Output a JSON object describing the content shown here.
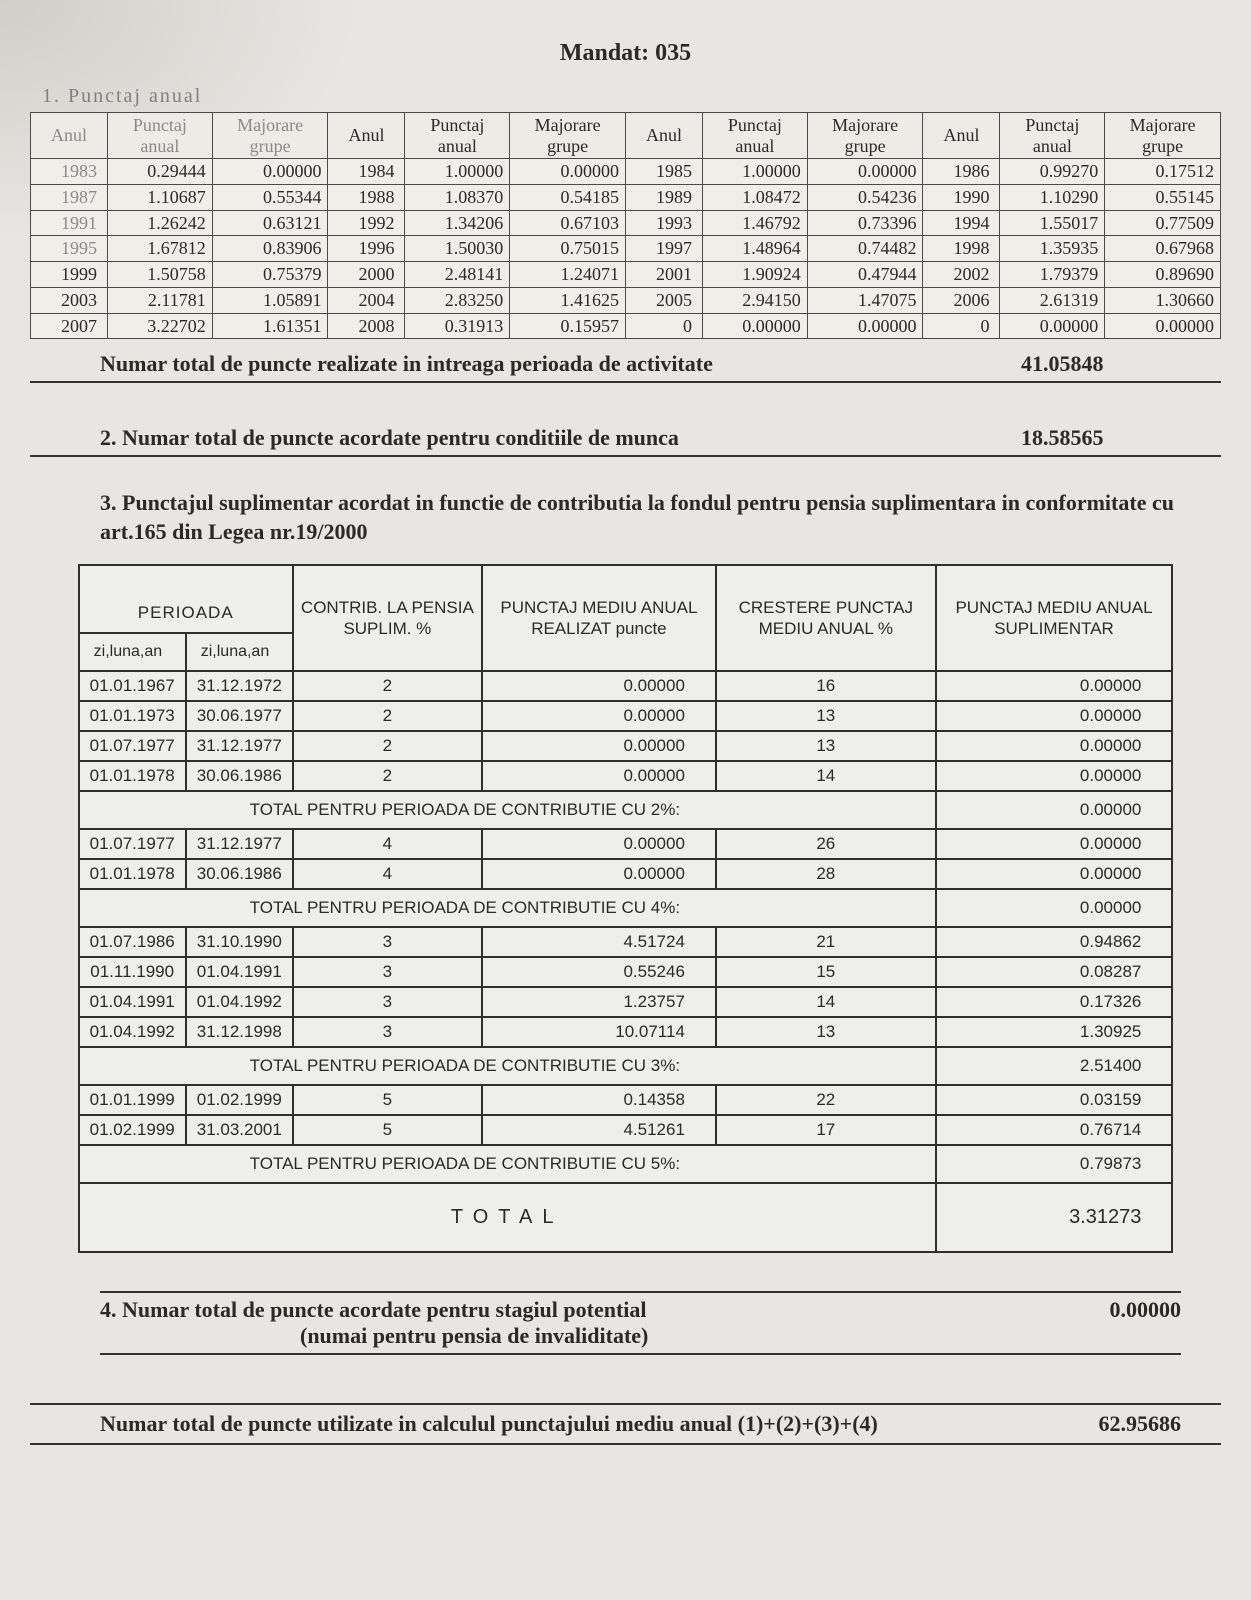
{
  "title": "Mandat: 035",
  "section1_label": "1. Punctaj anual",
  "yearly": {
    "headers": {
      "anul": "Anul",
      "punctaj": "Punctaj anual",
      "majorare": "Majorare grupe"
    },
    "rows": [
      [
        {
          "y": "1983",
          "p": "0.29444",
          "m": "0.00000"
        },
        {
          "y": "1984",
          "p": "1.00000",
          "m": "0.00000"
        },
        {
          "y": "1985",
          "p": "1.00000",
          "m": "0.00000"
        },
        {
          "y": "1986",
          "p": "0.99270",
          "m": "0.17512"
        }
      ],
      [
        {
          "y": "1987",
          "p": "1.10687",
          "m": "0.55344"
        },
        {
          "y": "1988",
          "p": "1.08370",
          "m": "0.54185"
        },
        {
          "y": "1989",
          "p": "1.08472",
          "m": "0.54236"
        },
        {
          "y": "1990",
          "p": "1.10290",
          "m": "0.55145"
        }
      ],
      [
        {
          "y": "1991",
          "p": "1.26242",
          "m": "0.63121"
        },
        {
          "y": "1992",
          "p": "1.34206",
          "m": "0.67103"
        },
        {
          "y": "1993",
          "p": "1.46792",
          "m": "0.73396"
        },
        {
          "y": "1994",
          "p": "1.55017",
          "m": "0.77509"
        }
      ],
      [
        {
          "y": "1995",
          "p": "1.67812",
          "m": "0.83906"
        },
        {
          "y": "1996",
          "p": "1.50030",
          "m": "0.75015"
        },
        {
          "y": "1997",
          "p": "1.48964",
          "m": "0.74482"
        },
        {
          "y": "1998",
          "p": "1.35935",
          "m": "0.67968"
        }
      ],
      [
        {
          "y": "1999",
          "p": "1.50758",
          "m": "0.75379"
        },
        {
          "y": "2000",
          "p": "2.48141",
          "m": "1.24071"
        },
        {
          "y": "2001",
          "p": "1.90924",
          "m": "0.47944"
        },
        {
          "y": "2002",
          "p": "1.79379",
          "m": "0.89690"
        }
      ],
      [
        {
          "y": "2003",
          "p": "2.11781",
          "m": "1.05891"
        },
        {
          "y": "2004",
          "p": "2.83250",
          "m": "1.41625"
        },
        {
          "y": "2005",
          "p": "2.94150",
          "m": "1.47075"
        },
        {
          "y": "2006",
          "p": "2.61319",
          "m": "1.30660"
        }
      ],
      [
        {
          "y": "2007",
          "p": "3.22702",
          "m": "1.61351"
        },
        {
          "y": "2008",
          "p": "0.31913",
          "m": "0.15957"
        },
        {
          "y": "0",
          "p": "0.00000",
          "m": "0.00000"
        },
        {
          "y": "0",
          "p": "0.00000",
          "m": "0.00000"
        }
      ]
    ]
  },
  "total1": {
    "label": "Numar total de puncte realizate in intreaga perioada de activitate",
    "value": "41.05848"
  },
  "total2": {
    "label": "2. Numar total de puncte acordate pentru conditiile de munca",
    "value": "18.58565"
  },
  "section3": {
    "heading": "3. Punctajul suplimentar acordat in functie de contributia la fondul pentru pensia suplimentara in conformitate cu art.165 din Legea nr.19/2000",
    "headers": {
      "perioada": "PERIOADA",
      "zi": "zi,luna,an",
      "contrib": "CONTRIB. LA PENSIA SUPLIM. %",
      "punctaj": "PUNCTAJ MEDIU ANUAL REALIZAT puncte",
      "crestere": "CRESTERE PUNCTAJ MEDIU ANUAL %",
      "suplim": "PUNCTAJ MEDIU ANUAL SUPLIMENTAR"
    },
    "blocks": [
      {
        "rows": [
          {
            "d1": "01.01.1967",
            "d2": "31.12.1972",
            "c": "2",
            "p": "0.00000",
            "cr": "16",
            "s": "0.00000"
          },
          {
            "d1": "01.01.1973",
            "d2": "30.06.1977",
            "c": "2",
            "p": "0.00000",
            "cr": "13",
            "s": "0.00000"
          },
          {
            "d1": "01.07.1977",
            "d2": "31.12.1977",
            "c": "2",
            "p": "0.00000",
            "cr": "13",
            "s": "0.00000"
          },
          {
            "d1": "01.01.1978",
            "d2": "30.06.1986",
            "c": "2",
            "p": "0.00000",
            "cr": "14",
            "s": "0.00000"
          }
        ],
        "subtotal": {
          "label": "TOTAL PENTRU PERIOADA DE CONTRIBUTIE CU 2%:",
          "value": "0.00000"
        }
      },
      {
        "rows": [
          {
            "d1": "01.07.1977",
            "d2": "31.12.1977",
            "c": "4",
            "p": "0.00000",
            "cr": "26",
            "s": "0.00000"
          },
          {
            "d1": "01.01.1978",
            "d2": "30.06.1986",
            "c": "4",
            "p": "0.00000",
            "cr": "28",
            "s": "0.00000"
          }
        ],
        "subtotal": {
          "label": "TOTAL PENTRU PERIOADA DE CONTRIBUTIE CU 4%:",
          "value": "0.00000"
        }
      },
      {
        "rows": [
          {
            "d1": "01.07.1986",
            "d2": "31.10.1990",
            "c": "3",
            "p": "4.51724",
            "cr": "21",
            "s": "0.94862"
          },
          {
            "d1": "01.11.1990",
            "d2": "01.04.1991",
            "c": "3",
            "p": "0.55246",
            "cr": "15",
            "s": "0.08287"
          },
          {
            "d1": "01.04.1991",
            "d2": "01.04.1992",
            "c": "3",
            "p": "1.23757",
            "cr": "14",
            "s": "0.17326"
          },
          {
            "d1": "01.04.1992",
            "d2": "31.12.1998",
            "c": "3",
            "p": "10.07114",
            "cr": "13",
            "s": "1.30925"
          }
        ],
        "subtotal": {
          "label": "TOTAL PENTRU PERIOADA DE CONTRIBUTIE CU 3%:",
          "value": "2.51400"
        }
      },
      {
        "rows": [
          {
            "d1": "01.01.1999",
            "d2": "01.02.1999",
            "c": "5",
            "p": "0.14358",
            "cr": "22",
            "s": "0.03159"
          },
          {
            "d1": "01.02.1999",
            "d2": "31.03.2001",
            "c": "5",
            "p": "4.51261",
            "cr": "17",
            "s": "0.76714"
          }
        ],
        "subtotal": {
          "label": "TOTAL PENTRU PERIOADA DE CONTRIBUTIE CU 5%:",
          "value": "0.79873"
        }
      }
    ],
    "grand": {
      "label": "TOTAL",
      "value": "3.31273"
    }
  },
  "section4": {
    "label": "4. Numar total de puncte acordate pentru stagiul potential",
    "sub": "(numai pentru pensia de invaliditate)",
    "value": "0.00000"
  },
  "final": {
    "label": "Numar total de puncte utilizate in calculul punctajului mediu anual (1)+(2)+(3)+(4)",
    "value": "62.95686"
  }
}
